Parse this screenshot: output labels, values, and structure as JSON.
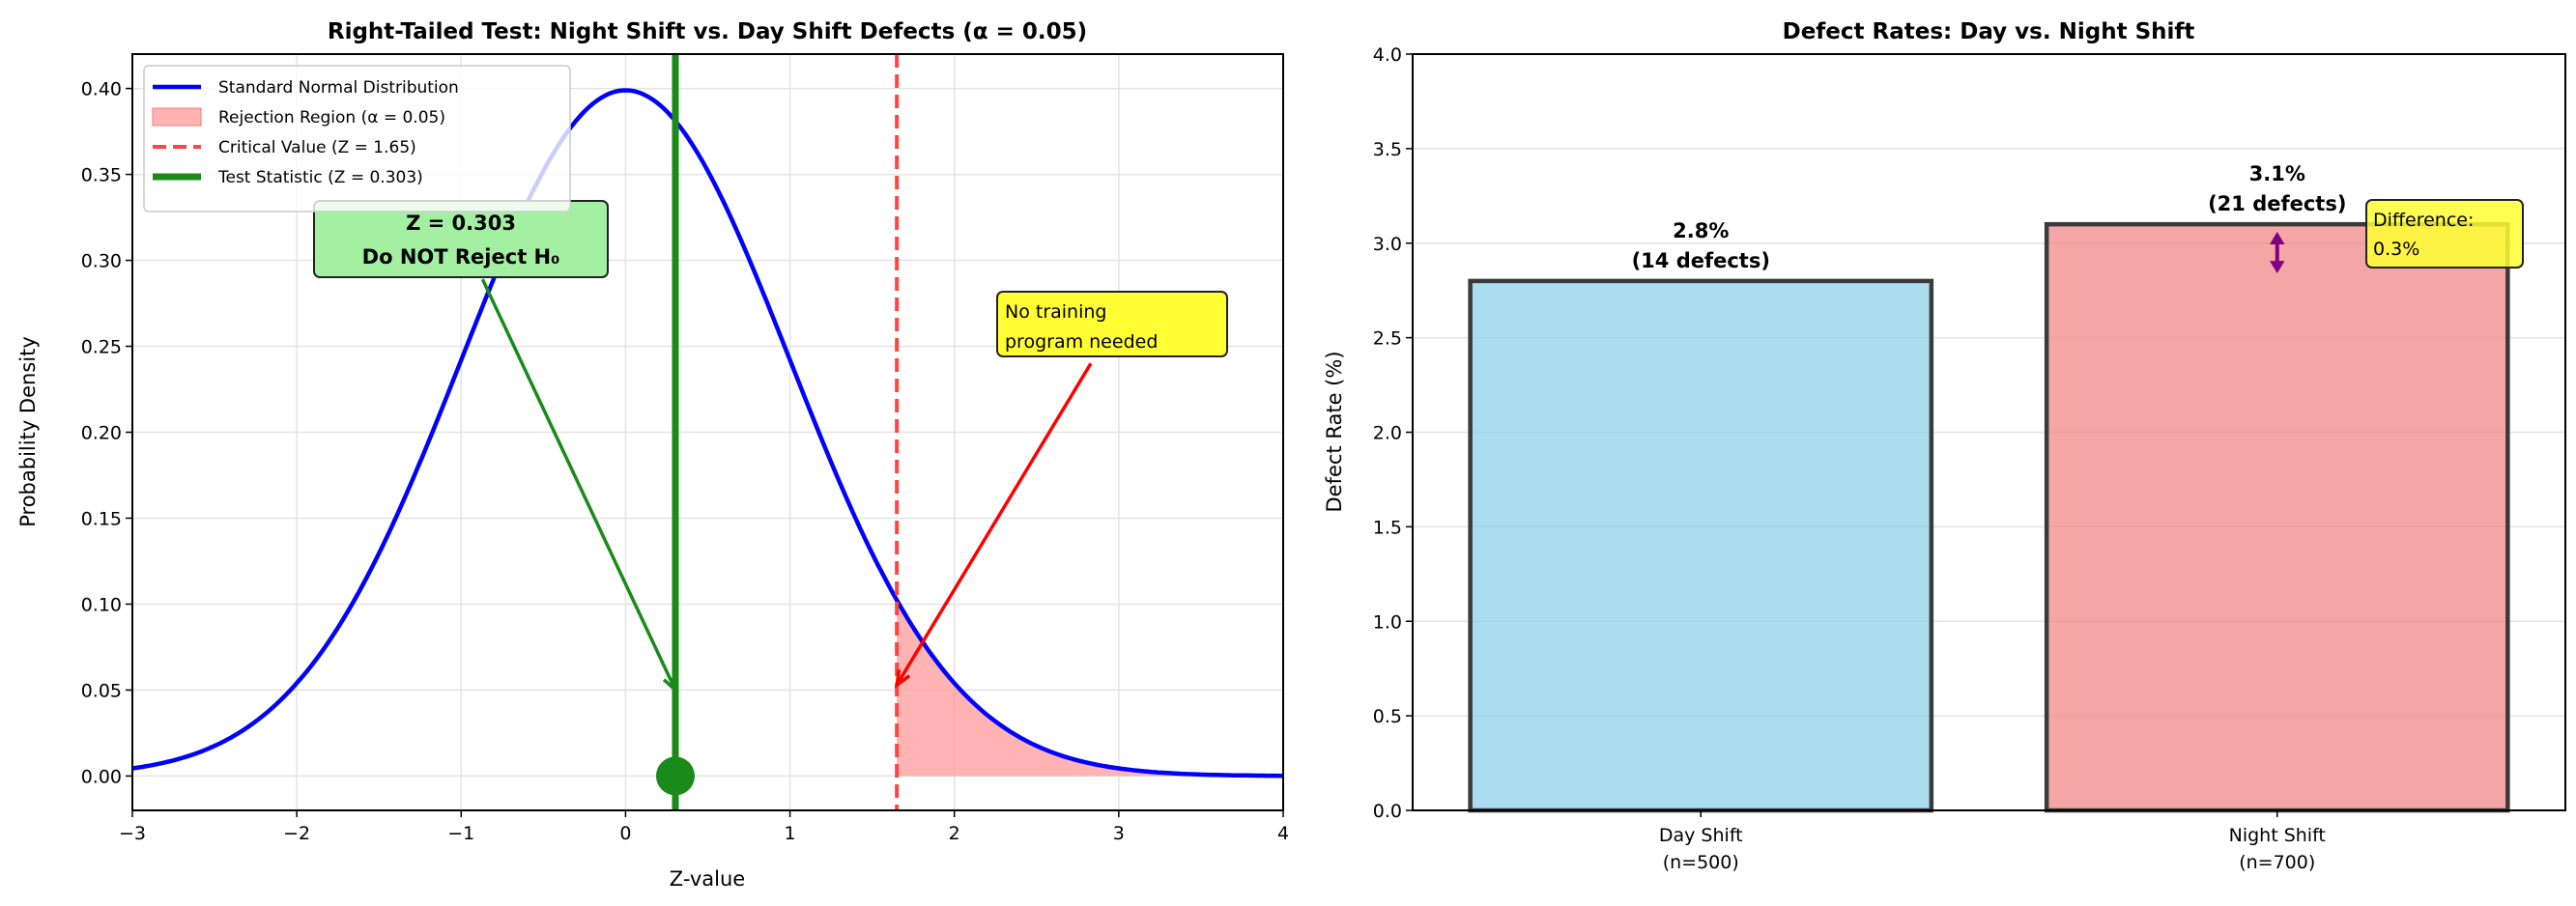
{
  "chart_data": [
    {
      "type": "line",
      "title": "Right-Tailed Test: Night Shift vs. Day Shift Defects (α = 0.05)",
      "xlabel": "Z-value",
      "ylabel": "Probability Density",
      "xlim": [
        -3,
        4
      ],
      "ylim": [
        -0.02,
        0.42
      ],
      "xticks": [
        "−3",
        "−2",
        "−1",
        "0",
        "1",
        "2",
        "3",
        "4"
      ],
      "xtick_values": [
        -3,
        -2,
        -1,
        0,
        1,
        2,
        3,
        4
      ],
      "yticks": [
        "0.00",
        "0.05",
        "0.10",
        "0.15",
        "0.20",
        "0.25",
        "0.30",
        "0.35",
        "0.40"
      ],
      "ytick_values": [
        0,
        0.05,
        0.1,
        0.15,
        0.2,
        0.25,
        0.3,
        0.35,
        0.4
      ],
      "grid": true,
      "legend_position": "top-left",
      "legend": [
        "Standard Normal Distribution",
        "Rejection Region (α = 0.05)",
        "Critical Value (Z = 1.65)",
        "Test Statistic (Z = 0.303)"
      ],
      "series": [
        {
          "name": "Standard Normal Distribution",
          "function": "normal_pdf",
          "mean": 0,
          "sd": 1,
          "color": "#0000ff"
        }
      ],
      "critical_value": 1.65,
      "test_statistic": 0.303,
      "colors": {
        "curve": "#0000ff",
        "rejection": "#ff9999",
        "critical": "#ff4444",
        "test": "#1a8a1a",
        "test_box": "#a3f0a3",
        "note_box": "#ffff33"
      },
      "annotations": [
        {
          "lines": [
            "Z = 0.303",
            "Do NOT Reject H₀"
          ],
          "arrow_tail": [
            -0.87,
            0.289
          ],
          "arrow_tip": [
            0.303,
            0.05
          ]
        },
        {
          "lines": [
            "No training",
            "program needed"
          ],
          "arrow_tail": [
            2.83,
            0.24
          ],
          "arrow_tip": [
            1.65,
            0.053
          ]
        }
      ]
    },
    {
      "type": "bar",
      "title": "Defect Rates: Day vs. Night Shift",
      "ylabel": "Defect Rate (%)",
      "ylim": [
        0,
        4
      ],
      "yticks": [
        "0.0",
        "0.5",
        "1.0",
        "1.5",
        "2.0",
        "2.5",
        "3.0",
        "3.5",
        "4.0"
      ],
      "ytick_values": [
        0,
        0.5,
        1,
        1.5,
        2,
        2.5,
        3,
        3.5,
        4
      ],
      "grid": true,
      "categories": [
        {
          "name": "Day Shift",
          "n": "(n=500)",
          "value": 2.8,
          "label": "2.8%",
          "defects": "(14 defects)",
          "color": "#87ceeb"
        },
        {
          "name": "Night Shift",
          "n": "(n=700)",
          "value": 3.1,
          "label": "3.1%",
          "defects": "(21 defects)",
          "color": "#f08080"
        }
      ],
      "difference": {
        "lines": [
          "Difference:",
          "0.3%"
        ],
        "from": 2.85,
        "to": 3.05
      }
    }
  ]
}
